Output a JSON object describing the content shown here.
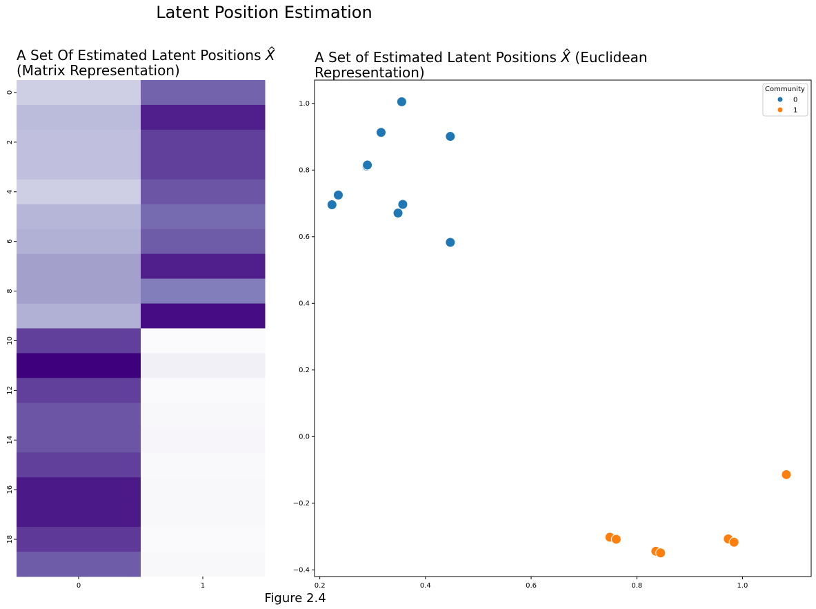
{
  "figure": {
    "suptitle": "Latent Position Estimation",
    "caption": "Figure 2.4"
  },
  "chart_data": [
    {
      "type": "heatmap",
      "title_line1_prefix": "A Set Of Estimated Latent Positions ",
      "title_symbol": "X",
      "title_symbol_accent": "^",
      "title_line2": "(Matrix Representation)",
      "x_tick_labels": [
        "0",
        "1"
      ],
      "y_tick_labels": [
        "0",
        "2",
        "4",
        "6",
        "8",
        "10",
        "12",
        "14",
        "16",
        "18"
      ],
      "y_tick_rows": [
        0,
        2,
        4,
        6,
        8,
        10,
        12,
        14,
        16,
        18
      ],
      "colormap": "Purples",
      "value_range": [
        0,
        1
      ],
      "grid": false,
      "legend": "none",
      "values": [
        [
          0.3,
          0.7
        ],
        [
          0.38,
          0.9
        ],
        [
          0.36,
          0.8
        ],
        [
          0.36,
          0.8
        ],
        [
          0.3,
          0.74
        ],
        [
          0.4,
          0.68
        ],
        [
          0.42,
          0.72
        ],
        [
          0.48,
          0.9
        ],
        [
          0.48,
          0.62
        ],
        [
          0.42,
          0.96
        ],
        [
          0.8,
          0.01
        ],
        [
          1.0,
          0.1
        ],
        [
          0.8,
          0.02
        ],
        [
          0.74,
          0.04
        ],
        [
          0.74,
          0.05
        ],
        [
          0.8,
          0.03
        ],
        [
          0.92,
          0.04
        ],
        [
          0.92,
          0.04
        ],
        [
          0.82,
          0.02
        ],
        [
          0.72,
          0.04
        ]
      ]
    },
    {
      "type": "scatter",
      "title_line1_prefix": "A Set of Estimated Latent Positions ",
      "title_symbol": "X",
      "title_symbol_accent": "^",
      "title_line1_suffix": " (Euclidean",
      "title_line2": "Representation)",
      "xlabel": "",
      "ylabel": "",
      "xlim": [
        0.19,
        1.13
      ],
      "ylim": [
        -0.42,
        1.07
      ],
      "x_ticks": [
        0.2,
        0.4,
        0.6,
        0.8,
        1.0
      ],
      "x_tick_labels": [
        "0.2",
        "0.4",
        "0.6",
        "0.8",
        "1.0"
      ],
      "y_ticks": [
        -0.4,
        -0.2,
        0.0,
        0.2,
        0.4,
        0.6,
        0.8,
        1.0
      ],
      "y_tick_labels": [
        "−0.4",
        "−0.2",
        "0.0",
        "0.2",
        "0.4",
        "0.6",
        "0.8",
        "1.0"
      ],
      "grid": false,
      "legend": {
        "title": "Community",
        "placement": "top-right",
        "entries": [
          {
            "label": "0",
            "color": "#1f77b4"
          },
          {
            "label": "1",
            "color": "#ff7f0e"
          }
        ]
      },
      "series": [
        {
          "name": "0",
          "color": "#1f77b4",
          "points": [
            {
              "x": 0.355,
              "y": 1.005
            },
            {
              "x": 0.316,
              "y": 0.913
            },
            {
              "x": 0.447,
              "y": 0.901
            },
            {
              "x": 0.289,
              "y": 0.812
            },
            {
              "x": 0.29,
              "y": 0.815
            },
            {
              "x": 0.235,
              "y": 0.725
            },
            {
              "x": 0.223,
              "y": 0.696
            },
            {
              "x": 0.357,
              "y": 0.697
            },
            {
              "x": 0.348,
              "y": 0.671
            },
            {
              "x": 0.447,
              "y": 0.583
            }
          ]
        },
        {
          "name": "1",
          "color": "#ff7f0e",
          "points": [
            {
              "x": 1.083,
              "y": -0.114
            },
            {
              "x": 0.749,
              "y": -0.302
            },
            {
              "x": 0.761,
              "y": -0.308
            },
            {
              "x": 0.836,
              "y": -0.344
            },
            {
              "x": 0.845,
              "y": -0.349
            },
            {
              "x": 0.973,
              "y": -0.307
            },
            {
              "x": 0.984,
              "y": -0.317
            }
          ]
        }
      ]
    }
  ]
}
